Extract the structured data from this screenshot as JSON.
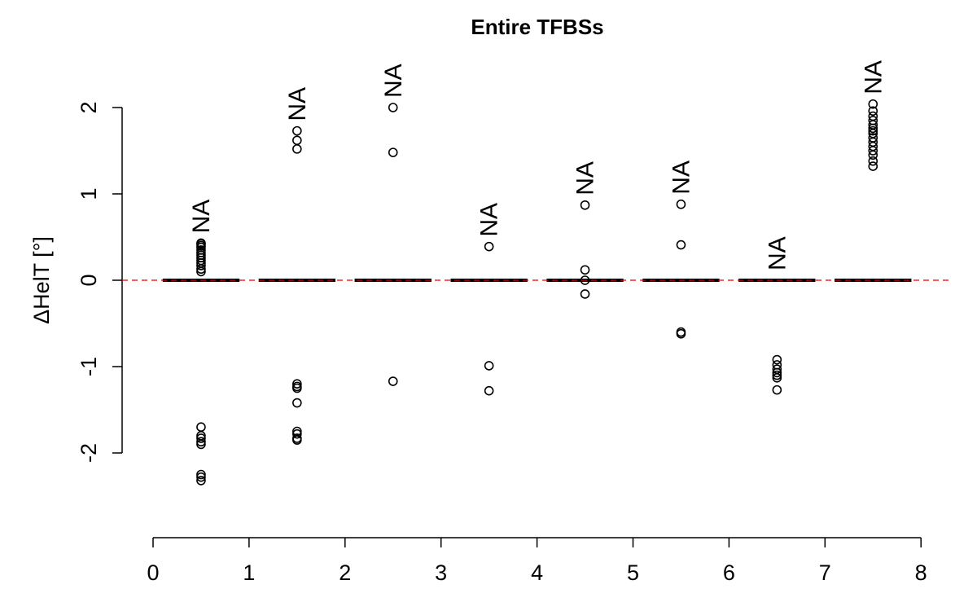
{
  "chart_data": {
    "type": "boxplot",
    "title": "Entire TFBSs",
    "xlabel": "",
    "ylabel": "ΔHelT [°]",
    "xlim": [
      0,
      8
    ],
    "ylim": [
      -2.8,
      2.4
    ],
    "x_ticks": [
      "0",
      "1",
      "2",
      "3",
      "4",
      "5",
      "6",
      "7",
      "8"
    ],
    "y_ticks": [
      "-2",
      "-1",
      "0",
      "1",
      "2"
    ],
    "reference_line": {
      "y": 0,
      "color": "#e00000",
      "style": "dashed"
    },
    "annotation_text": "NA",
    "groups": [
      {
        "x": 0.5,
        "median": 0,
        "outliers": [
          0.1,
          0.13,
          0.17,
          0.2,
          0.23,
          0.26,
          0.29,
          0.32,
          0.35,
          0.38,
          0.4,
          0.42,
          0.43,
          -1.7,
          -1.8,
          -1.83,
          -1.87,
          -1.9,
          -2.25,
          -2.28,
          -2.32
        ]
      },
      {
        "x": 1.5,
        "median": 0,
        "outliers": [
          1.73,
          1.62,
          1.52,
          -1.2,
          -1.23,
          -1.25,
          -1.42,
          -1.75,
          -1.78,
          -1.83,
          -1.85
        ]
      },
      {
        "x": 2.5,
        "median": 0,
        "outliers": [
          2.0,
          1.48,
          -1.17
        ]
      },
      {
        "x": 3.5,
        "median": 0,
        "outliers": [
          0.39,
          -0.99,
          -1.28
        ]
      },
      {
        "x": 4.5,
        "median": 0,
        "outliers": [
          0.87,
          0.12,
          0.0,
          -0.16
        ]
      },
      {
        "x": 5.5,
        "median": 0,
        "outliers": [
          0.88,
          0.41,
          -0.6,
          -0.62
        ]
      },
      {
        "x": 6.5,
        "median": 0,
        "outliers": [
          -0.92,
          -0.98,
          -1.03,
          -1.07,
          -1.1,
          -1.13,
          -1.27
        ]
      },
      {
        "x": 7.5,
        "median": 0,
        "outliers": [
          1.32,
          1.38,
          1.45,
          1.5,
          1.55,
          1.6,
          1.65,
          1.7,
          1.73,
          1.76,
          1.8,
          1.85,
          1.9,
          1.96,
          2.04
        ]
      }
    ],
    "na_label_positions": [
      0.5,
      1.5,
      2.5,
      3.5,
      4.5,
      5.5,
      6.5,
      7.5
    ],
    "grid": false,
    "colors": {
      "points": "#000000",
      "reference": "#e00000"
    }
  }
}
